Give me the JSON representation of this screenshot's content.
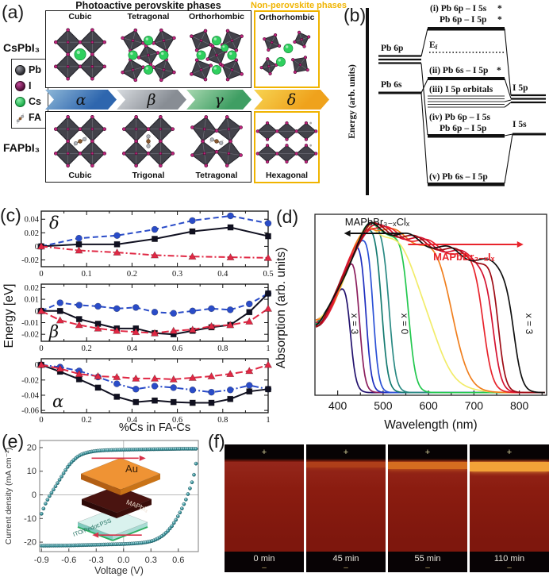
{
  "panel_a": {
    "label": "(a)",
    "header_photoactive": "Photoactive perovskite phases",
    "header_nonperovskite": "Non-perovskite phases",
    "accent_nonperovskite": "#f0b400",
    "compound_top": "CsPbI₃",
    "compound_bottom": "FAPbI₃",
    "legend": {
      "pb": "Pb",
      "i": "I",
      "cs": "Cs",
      "fa": "FA"
    },
    "cs_phase_titles": [
      "Cubic",
      "Tetragonal",
      "Orthorhombic"
    ],
    "cs_nonperovskite_title": "Orthorhombic",
    "fa_phase_titles": [
      "Cubic",
      "Trigonal",
      "Tetragonal"
    ],
    "fa_nonperovskite_title": "Hexagonal",
    "arrows": [
      {
        "label": "α",
        "c1": "#8fb8d8",
        "c2": "#2e66ae"
      },
      {
        "label": "β",
        "c1": "#d8dce0",
        "c2": "#888d94"
      },
      {
        "label": "γ",
        "c1": "#a8d8b0",
        "c2": "#3f9e63"
      },
      {
        "label": "δ",
        "c1": "#f7d452",
        "c2": "#efa21c"
      }
    ]
  },
  "panel_b": {
    "label": "(b)",
    "axis_label": "Energy (arb. units)",
    "pb6p": "Pb 6p",
    "pb6s": "Pb 6s",
    "i5p": "I 5p",
    "i5s": "I 5s",
    "ef_main": "E",
    "ef_sub": "f",
    "star": "*",
    "level_i_line1": "(i) Pb 6p – I 5s",
    "level_i_line2": "Pb 6p – I 5p",
    "level_ii": "(ii) Pb 6s – I 5p",
    "level_iii": "(iii) I 5p orbitals",
    "level_iv_line1": "(iv) Pb 6p – I 5s",
    "level_iv_line2": "Pb 6p – I 5p",
    "level_v": "(v) Pb 6s – I 5p"
  },
  "panel_c": {
    "label": "(c)",
    "ylabel": "Energy [eV]",
    "xlabel": "%Cs in FA-Cs"
  },
  "panel_d": {
    "label": "(d)",
    "ylabel": "Absorption (arb. units)",
    "xlabel": "Wavelength (nm)",
    "series_left": "MAPbBr₃₋ₓClₓ",
    "series_right": "MAPbBr₃₋ₓIₓ",
    "label_x3_left": "x = 3",
    "label_x0": "x = 0",
    "label_x3_right": "x = 3",
    "red": "#e8242c"
  },
  "panel_e": {
    "label": "(e)",
    "ylabel": "Current density (mA cm⁻²)",
    "xlabel": "Voltage (V)",
    "inset": {
      "top": "Au",
      "middle": "MAPbI₃",
      "bottom": "ITO/Pedot:PSS"
    }
  },
  "panel_f": {
    "label": "(f)",
    "plus": "+",
    "minus": "–",
    "frames": [
      {
        "time": "0 min",
        "band_color": "rgba(0,0,0,0)",
        "band_h": 0
      },
      {
        "time": "45 min",
        "band_color": "rgba(196,84,26,0.55)",
        "band_h": 7
      },
      {
        "time": "55 min",
        "band_color": "rgba(224,122,34,0.85)",
        "band_h": 9
      },
      {
        "time": "110 min",
        "band_color": "#f2a238",
        "band_h": 12
      }
    ]
  },
  "chart_data": [
    {
      "id": "c_delta",
      "type": "line",
      "phase_label": "δ",
      "xlim": [
        0,
        0.5
      ],
      "ylim": [
        -0.03,
        0.052
      ],
      "x": [
        0,
        0.083,
        0.167,
        0.25,
        0.333,
        0.417,
        0.5
      ],
      "x_ticks": [
        "0",
        "0.1",
        "0.2",
        "0.3",
        "0.4",
        "0.5"
      ],
      "x_tick_vals": [
        0,
        0.1,
        0.2,
        0.3,
        0.4,
        0.5
      ],
      "y_ticks": [
        "-0.02",
        "0",
        "0.02",
        "0.04"
      ],
      "y_tick_vals": [
        -0.02,
        0,
        0.02,
        0.04
      ],
      "series": [
        {
          "name": "blue-circles",
          "marker": "circle",
          "color": "#2a4cc8",
          "dash": "7,4",
          "values": [
            0,
            0.012,
            0.016,
            0.025,
            0.038,
            0.045,
            0.034
          ]
        },
        {
          "name": "black-squares",
          "marker": "square",
          "color": "#101020",
          "dash": "",
          "values": [
            0,
            0.003,
            0.003,
            0.011,
            0.022,
            0.028,
            0.015
          ]
        },
        {
          "name": "red-triangles",
          "marker": "triangle",
          "color": "#e02844",
          "dash": "8,3,2,3",
          "values": [
            0,
            -0.006,
            -0.009,
            -0.013,
            -0.015,
            -0.016,
            -0.017
          ]
        }
      ]
    },
    {
      "id": "c_beta",
      "type": "line",
      "phase_label": "β",
      "xlim": [
        0,
        1
      ],
      "ylim": [
        -0.026,
        0.023
      ],
      "x": [
        0,
        0.083,
        0.167,
        0.25,
        0.333,
        0.417,
        0.5,
        0.583,
        0.667,
        0.75,
        0.833,
        0.917,
        1
      ],
      "x_ticks": [
        "0",
        "0.2",
        "0.4",
        "0.6",
        "0.8",
        "1"
      ],
      "x_tick_vals": [
        0,
        0.2,
        0.4,
        0.6,
        0.8,
        1
      ],
      "y_ticks": [
        "-0.02",
        "-0.01",
        "0",
        "0.01",
        "0.02"
      ],
      "y_tick_vals": [
        -0.02,
        -0.01,
        0,
        0.01,
        0.02
      ],
      "series": [
        {
          "name": "blue-circles",
          "marker": "circle",
          "color": "#2a4cc8",
          "dash": "7,4",
          "values": [
            0,
            0.007,
            0.005,
            0.004,
            0.002,
            0.003,
            -0.001,
            -0.002,
            0,
            0.002,
            0.001,
            0.006,
            0.015
          ]
        },
        {
          "name": "black-squares",
          "marker": "square",
          "color": "#101020",
          "dash": "",
          "values": [
            0,
            0,
            -0.007,
            -0.011,
            -0.015,
            -0.015,
            -0.019,
            -0.02,
            -0.017,
            -0.014,
            -0.012,
            -0.001,
            0.015
          ]
        },
        {
          "name": "red-triangles",
          "marker": "triangle",
          "color": "#e02844",
          "dash": "9,4",
          "values": [
            0,
            -0.008,
            -0.012,
            -0.015,
            -0.017,
            -0.018,
            -0.019,
            -0.017,
            -0.016,
            -0.013,
            -0.012,
            -0.009,
            0.002
          ]
        }
      ]
    },
    {
      "id": "c_alpha",
      "type": "line",
      "phase_label": "α",
      "xlim": [
        0,
        1
      ],
      "ylim": [
        -0.063,
        0.008
      ],
      "x": [
        0,
        0.083,
        0.167,
        0.25,
        0.333,
        0.417,
        0.5,
        0.583,
        0.667,
        0.75,
        0.833,
        0.917,
        1
      ],
      "x_ticks": [
        "0",
        "0.2",
        "0.4",
        "0.6",
        "0.8",
        "1"
      ],
      "x_tick_vals": [
        0,
        0.2,
        0.4,
        0.6,
        0.8,
        1
      ],
      "y_ticks": [
        "-0.06",
        "-0.04",
        "-0.02",
        "0"
      ],
      "y_tick_vals": [
        -0.06,
        -0.04,
        -0.02,
        0
      ],
      "series": [
        {
          "name": "blue-circles",
          "marker": "circle",
          "color": "#2a4cc8",
          "dash": "8,3,2,3",
          "values": [
            0,
            -0.003,
            -0.008,
            -0.016,
            -0.025,
            -0.032,
            -0.028,
            -0.03,
            -0.033,
            -0.036,
            -0.033,
            -0.027,
            -0.032
          ]
        },
        {
          "name": "black-squares",
          "marker": "square",
          "color": "#101020",
          "dash": "",
          "values": [
            0,
            -0.009,
            -0.019,
            -0.03,
            -0.042,
            -0.049,
            -0.047,
            -0.049,
            -0.05,
            -0.05,
            -0.045,
            -0.035,
            -0.032
          ]
        },
        {
          "name": "red-triangles",
          "marker": "triangle",
          "color": "#e02844",
          "dash": "9,4",
          "values": [
            0,
            -0.005,
            -0.012,
            -0.015,
            -0.016,
            -0.018,
            -0.018,
            -0.019,
            -0.017,
            -0.015,
            -0.012,
            -0.008,
            0
          ]
        }
      ]
    },
    {
      "id": "d_absorption",
      "type": "line-spectra",
      "xlim": [
        350,
        860
      ],
      "x_ticks": [
        "400",
        "500",
        "600",
        "700",
        "800"
      ],
      "x_tick_vals": [
        400,
        500,
        600,
        700,
        800
      ],
      "curves": [
        {
          "name": "Cl x=3",
          "color": "#23126e",
          "edge": 427,
          "w": 6
        },
        {
          "name": "Cl",
          "color": "#8c1f5e",
          "edge": 447,
          "w": 6
        },
        {
          "name": "Cl",
          "color": "#1f2fbf",
          "edge": 462,
          "w": 6
        },
        {
          "name": "Cl",
          "color": "#2b51d6",
          "edge": 478,
          "w": 6
        },
        {
          "name": "Cl",
          "color": "#147a70",
          "edge": 497,
          "w": 7
        },
        {
          "name": "Cl",
          "color": "#2a8a84",
          "edge": 514,
          "w": 7
        },
        {
          "name": "x=0",
          "color": "#22c84e",
          "edge": 556,
          "w": 8
        },
        {
          "name": "I",
          "color": "#f2ec6a",
          "edge": 602,
          "w": 27
        },
        {
          "name": "I",
          "color": "#f07f1e",
          "edge": 657,
          "w": 17
        },
        {
          "name": "I",
          "color": "#e8242c",
          "edge": 722,
          "w": 10
        },
        {
          "name": "I",
          "color": "#d41230",
          "edge": 742,
          "w": 9
        },
        {
          "name": "I",
          "color": "#9e0b14",
          "edge": 754,
          "w": 8
        },
        {
          "name": "I x=3",
          "color": "#111111",
          "edge": 788,
          "w": 9
        }
      ]
    },
    {
      "id": "e_jv",
      "type": "scatter",
      "xlim": [
        -0.92,
        0.82
      ],
      "ylim": [
        -24,
        23
      ],
      "x_ticks": [
        "-0.9",
        "-0.6",
        "-0.3",
        "0.0",
        "0.3",
        "0.6"
      ],
      "x_tick_vals": [
        -0.9,
        -0.6,
        -0.3,
        0,
        0.3,
        0.6
      ],
      "y_ticks": [
        "-20",
        "-10",
        "0",
        "10",
        "20"
      ],
      "y_tick_vals": [
        -20,
        -10,
        0,
        10,
        20
      ],
      "marker_color": "#3f98a0",
      "branches": [
        {
          "name": "reverse-scan-top",
          "points": [
            [
              -0.9,
              -8
            ],
            [
              -0.86,
              -4
            ],
            [
              -0.82,
              -1
            ],
            [
              -0.78,
              1.5
            ],
            [
              -0.74,
              4
            ],
            [
              -0.7,
              6.5
            ],
            [
              -0.66,
              9
            ],
            [
              -0.62,
              11.5
            ],
            [
              -0.58,
              13.5
            ],
            [
              -0.54,
              15
            ],
            [
              -0.5,
              16.3
            ],
            [
              -0.45,
              17.3
            ],
            [
              -0.4,
              17.9
            ],
            [
              -0.35,
              18.3
            ],
            [
              -0.3,
              18.6
            ],
            [
              -0.2,
              18.9
            ],
            [
              -0.1,
              19
            ],
            [
              0,
              19.1
            ],
            [
              0.15,
              19.2
            ],
            [
              0.3,
              19.3
            ],
            [
              0.5,
              19.4
            ],
            [
              0.65,
              19.5
            ],
            [
              0.8,
              19.5
            ]
          ]
        },
        {
          "name": "forward-scan-bottom",
          "points": [
            [
              -0.9,
              -21.5
            ],
            [
              -0.6,
              -21.4
            ],
            [
              -0.4,
              -21.2
            ],
            [
              -0.2,
              -21
            ],
            [
              0,
              -20.8
            ],
            [
              0.1,
              -20.6
            ],
            [
              0.2,
              -20.3
            ],
            [
              0.27,
              -19.9
            ],
            [
              0.33,
              -19.3
            ],
            [
              0.38,
              -18.4
            ],
            [
              0.43,
              -17.2
            ],
            [
              0.48,
              -15.5
            ],
            [
              0.53,
              -13.2
            ],
            [
              0.58,
              -10.2
            ],
            [
              0.63,
              -6.6
            ],
            [
              0.68,
              -2.4
            ],
            [
              0.72,
              1.8
            ],
            [
              0.76,
              6.5
            ],
            [
              0.79,
              11.5
            ],
            [
              0.8,
              15.8
            ]
          ]
        }
      ],
      "arrows": [
        {
          "x1": -0.35,
          "y1": 15.5,
          "x2": 0.2,
          "y2": 15.5
        },
        {
          "x1": 0.2,
          "y1": -17,
          "x2": -0.3,
          "y2": -17
        }
      ],
      "arrow_color": "#d8324a"
    }
  ]
}
